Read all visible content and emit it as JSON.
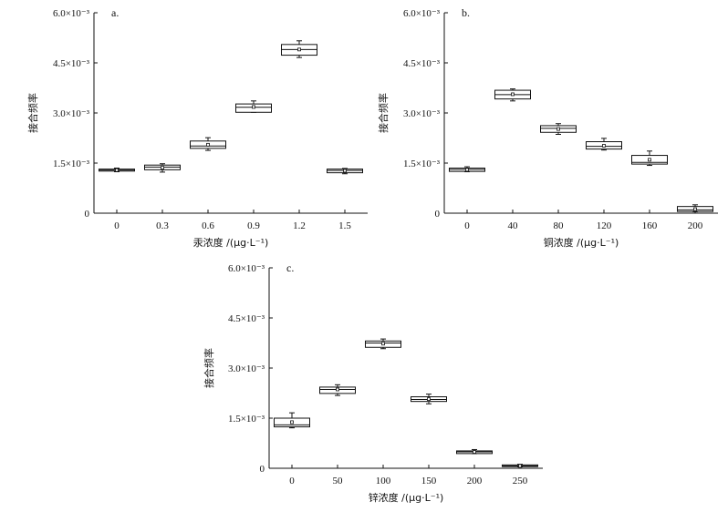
{
  "chart_data": [
    {
      "type": "box",
      "panel_label": "a.",
      "xlabel": "汞浓度 /(μg·L⁻¹)",
      "ylabel": "接合频率",
      "ylim": [
        0,
        0.006
      ],
      "yticks": [
        "0",
        "1.5×10⁻³",
        "3.0×10⁻³",
        "4.5×10⁻³",
        "6.0×10⁻³"
      ],
      "categories": [
        "0",
        "0.3",
        "0.6",
        "0.9",
        "1.2",
        "1.5"
      ],
      "boxes": [
        {
          "min": 0.00124,
          "q1": 0.00126,
          "median": 0.00129,
          "q3": 0.00132,
          "max": 0.00135,
          "mean": 0.00129
        },
        {
          "min": 0.00123,
          "q1": 0.0013,
          "median": 0.00138,
          "q3": 0.00144,
          "max": 0.00148,
          "mean": 0.00136
        },
        {
          "min": 0.00188,
          "q1": 0.00194,
          "median": 0.00201,
          "q3": 0.00216,
          "max": 0.00226,
          "mean": 0.00205
        },
        {
          "min": 0.00302,
          "q1": 0.00302,
          "median": 0.00317,
          "q3": 0.00327,
          "max": 0.00336,
          "mean": 0.00318
        },
        {
          "min": 0.00466,
          "q1": 0.00473,
          "median": 0.0049,
          "q3": 0.00505,
          "max": 0.00516,
          "mean": 0.0049
        },
        {
          "min": 0.00118,
          "q1": 0.00121,
          "median": 0.00128,
          "q3": 0.00132,
          "max": 0.00134,
          "mean": 0.00127
        }
      ]
    },
    {
      "type": "box",
      "panel_label": "b.",
      "xlabel": "铜浓度 /(μg·L⁻¹)",
      "ylabel": "接合频率",
      "ylim": [
        0,
        0.006
      ],
      "yticks": [
        "0",
        "1.5×10⁻³",
        "3.0×10⁻³",
        "4.5×10⁻³",
        "6.0×10⁻³"
      ],
      "categories": [
        "0",
        "40",
        "80",
        "120",
        "160",
        "200"
      ],
      "boxes": [
        {
          "min": 0.00124,
          "q1": 0.00125,
          "median": 0.00131,
          "q3": 0.00135,
          "max": 0.00139,
          "mean": 0.0013
        },
        {
          "min": 0.00336,
          "q1": 0.00342,
          "median": 0.00355,
          "q3": 0.00368,
          "max": 0.00372,
          "mean": 0.00356
        },
        {
          "min": 0.00236,
          "q1": 0.00242,
          "median": 0.00254,
          "q3": 0.00262,
          "max": 0.00268,
          "mean": 0.00252
        },
        {
          "min": 0.00189,
          "q1": 0.00192,
          "median": 0.002,
          "q3": 0.00214,
          "max": 0.00224,
          "mean": 0.00202
        },
        {
          "min": 0.00143,
          "q1": 0.00147,
          "median": 0.00152,
          "q3": 0.00173,
          "max": 0.00186,
          "mean": 0.0016
        },
        {
          "min": 4e-05,
          "q1": 5e-05,
          "median": 0.0001,
          "q3": 0.0002,
          "max": 0.00025,
          "mean": 0.00012
        }
      ]
    },
    {
      "type": "box",
      "panel_label": "c.",
      "xlabel": "锌浓度 /(μg·L⁻¹)",
      "ylabel": "接合频率",
      "ylim": [
        0,
        0.006
      ],
      "yticks": [
        "0",
        "1.5×10⁻³",
        "3.0×10⁻³",
        "4.5×10⁻³",
        "6.0×10⁻³"
      ],
      "categories": [
        "0",
        "50",
        "100",
        "150",
        "200",
        "250"
      ],
      "boxes": [
        {
          "min": 0.00121,
          "q1": 0.00124,
          "median": 0.0013,
          "q3": 0.0015,
          "max": 0.00166,
          "mean": 0.00138
        },
        {
          "min": 0.00218,
          "q1": 0.00224,
          "median": 0.00236,
          "q3": 0.00243,
          "max": 0.0025,
          "mean": 0.00236
        },
        {
          "min": 0.00358,
          "q1": 0.00362,
          "median": 0.00375,
          "q3": 0.00381,
          "max": 0.00387,
          "mean": 0.00373
        },
        {
          "min": 0.00193,
          "q1": 0.002,
          "median": 0.00206,
          "q3": 0.00214,
          "max": 0.00222,
          "mean": 0.00207
        },
        {
          "min": 0.00044,
          "q1": 0.00044,
          "median": 0.00049,
          "q3": 0.00052,
          "max": 0.00056,
          "mean": 0.00049
        },
        {
          "min": 4e-05,
          "q1": 5e-05,
          "median": 7e-05,
          "q3": 0.0001,
          "max": 0.00012,
          "mean": 7e-05
        }
      ]
    }
  ]
}
